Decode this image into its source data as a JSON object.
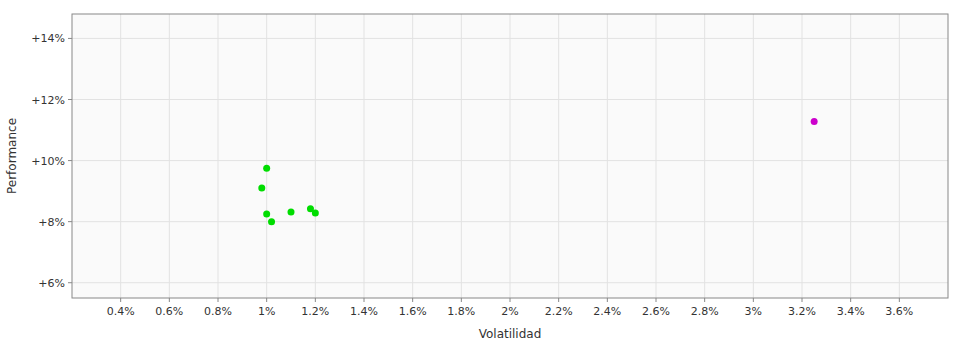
{
  "chart_data": {
    "type": "scatter",
    "xlabel": "Volatilidad",
    "ylabel": "Performance",
    "xlim": [
      0.002,
      0.038
    ],
    "ylim": [
      0.055,
      0.148
    ],
    "xticks": [
      {
        "value": 0.004,
        "label": "0.4%"
      },
      {
        "value": 0.006,
        "label": "0.6%"
      },
      {
        "value": 0.008,
        "label": "0.8%"
      },
      {
        "value": 0.01,
        "label": "1%"
      },
      {
        "value": 0.012,
        "label": "1.2%"
      },
      {
        "value": 0.014,
        "label": "1.4%"
      },
      {
        "value": 0.016,
        "label": "1.6%"
      },
      {
        "value": 0.018,
        "label": "1.8%"
      },
      {
        "value": 0.02,
        "label": "2%"
      },
      {
        "value": 0.022,
        "label": "2.2%"
      },
      {
        "value": 0.024,
        "label": "2.4%"
      },
      {
        "value": 0.026,
        "label": "2.6%"
      },
      {
        "value": 0.028,
        "label": "2.8%"
      },
      {
        "value": 0.03,
        "label": "3%"
      },
      {
        "value": 0.032,
        "label": "3.2%"
      },
      {
        "value": 0.034,
        "label": "3.4%"
      },
      {
        "value": 0.036,
        "label": "3.6%"
      }
    ],
    "yticks": [
      {
        "value": 0.06,
        "label": "+6%"
      },
      {
        "value": 0.08,
        "label": "+8%"
      },
      {
        "value": 0.1,
        "label": "+10%"
      },
      {
        "value": 0.12,
        "label": "+12%"
      },
      {
        "value": 0.14,
        "label": "+14%"
      }
    ],
    "grid": true,
    "series": [
      {
        "color": "#00dd00",
        "x": [
          0.01,
          0.0098,
          0.01,
          0.0102,
          0.011,
          0.0118,
          0.012
        ],
        "values": [
          0.0975,
          0.091,
          0.0825,
          0.08,
          0.0832,
          0.0842,
          0.0828
        ]
      },
      {
        "color": "#cc00cc",
        "x": [
          0.0325
        ],
        "values": [
          0.1128
        ]
      }
    ]
  }
}
